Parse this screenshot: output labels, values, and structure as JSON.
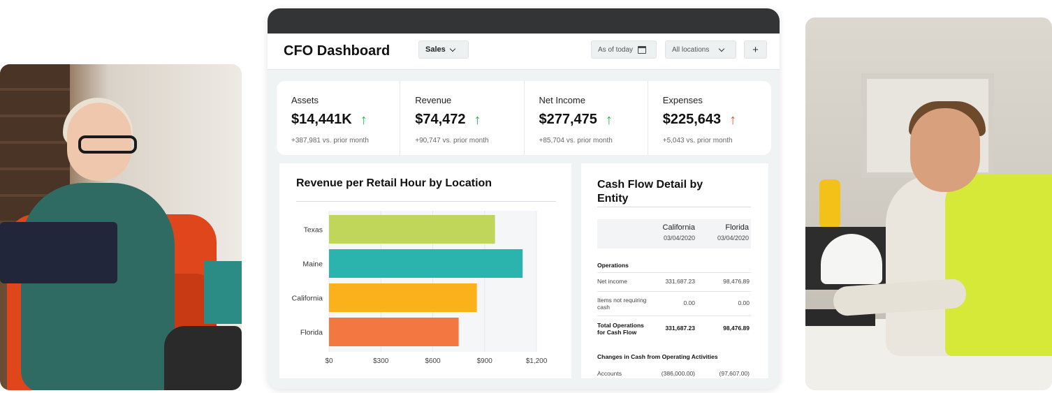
{
  "dashboard": {
    "title": "CFO Dashboard",
    "sales_filter": "Sales",
    "date_filter": "As of today",
    "location_filter": "All locations",
    "add_label": "+"
  },
  "kpis": [
    {
      "label": "Assets",
      "value": "$14,441K",
      "trend": "up",
      "trend_color": "#22b04b",
      "sub": "+387,981 vs. prior month"
    },
    {
      "label": "Revenue",
      "value": "$74,472",
      "trend": "up",
      "trend_color": "#22b04b",
      "sub": "+90,747 vs. prior month"
    },
    {
      "label": "Net Income",
      "value": "$277,475",
      "trend": "up",
      "trend_color": "#22b04b",
      "sub": "+85,704 vs. prior month"
    },
    {
      "label": "Expenses",
      "value": "$225,643",
      "trend": "up",
      "trend_color": "#e2552d",
      "sub": "+5,043 vs. prior month"
    }
  ],
  "chart_data": {
    "type": "bar",
    "orientation": "horizontal",
    "title": "Revenue per Retail Hour by Location",
    "categories": [
      "Texas",
      "Maine",
      "California",
      "Florida"
    ],
    "values": [
      960,
      1120,
      855,
      750
    ],
    "colors": [
      "#bfd65a",
      "#2bb3ae",
      "#fbb21a",
      "#f37741"
    ],
    "xlim": [
      0,
      1200
    ],
    "xticks": [
      "$0",
      "$300",
      "$600",
      "$900",
      "$1,200"
    ],
    "grid": true,
    "legend": "none"
  },
  "cash_flow": {
    "title": "Cash Flow Detail by Entity",
    "columns": [
      {
        "name": "California",
        "date": "03/04/2020"
      },
      {
        "name": "Florida",
        "date": "03/04/2020"
      }
    ],
    "sections": {
      "operations": "Operations",
      "changes": "Changes in Cash from Operating Activities"
    },
    "rows": [
      {
        "label": "Net income",
        "v1": "331,687.23",
        "v2": "98,476.89"
      },
      {
        "label": "Items not requiring cash",
        "v1": "0.00",
        "v2": "0.00"
      },
      {
        "label": "Total Operations for Cash Flow",
        "v1": "331,687.23",
        "v2": "98,476.89"
      },
      {
        "label": "Accounts",
        "v1": "(386,000.00)",
        "v2": "(97,607.00)"
      }
    ]
  },
  "icons": {
    "up_arrow": "↑",
    "calendar": "calendar-icon",
    "chevron": "chevron-down-icon"
  }
}
